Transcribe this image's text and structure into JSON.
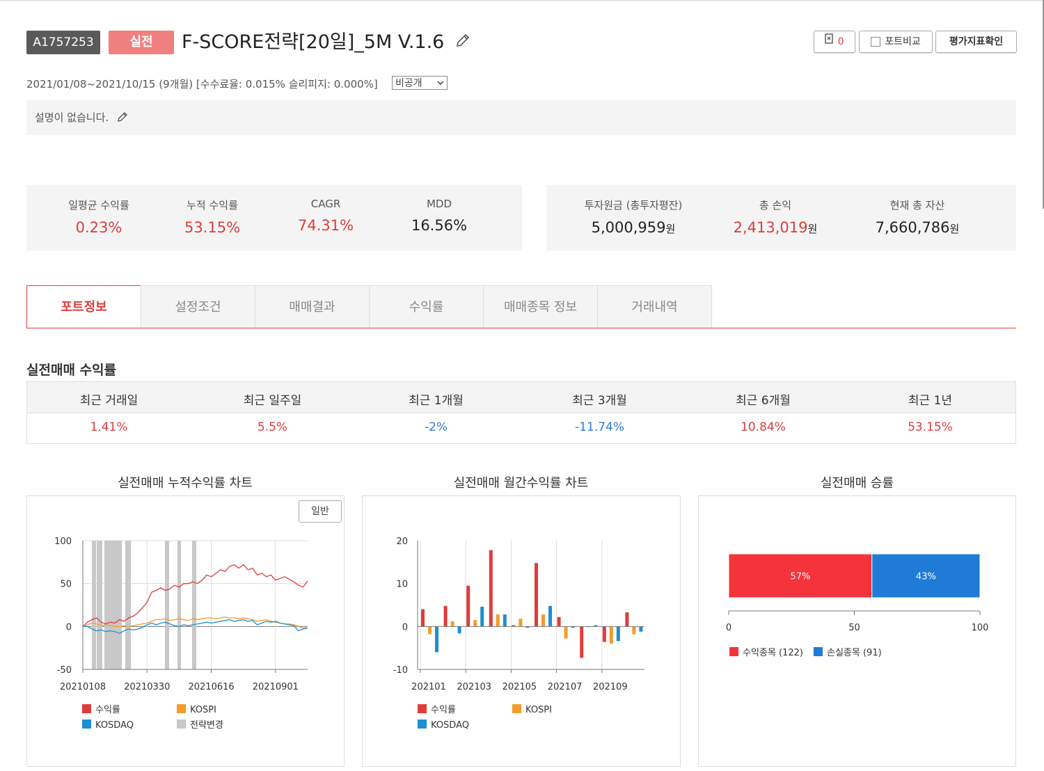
{
  "header": {
    "id": "A1757253",
    "badge": "실전",
    "title": "F-SCORE전략[20일]_5M V.1.6",
    "copy_count": "0",
    "compare_label": "포트비교",
    "eval_label": "평가지표확인",
    "meta": "2021/01/08~2021/10/15 (9개월) [수수료율: 0.015% 슬리피지: 0.000%]",
    "visibility": "비공개",
    "description": "설명이 없습니다."
  },
  "stats_left": [
    {
      "label": "일평균 수익률",
      "value": "0.23%"
    },
    {
      "label": "누적 수익률",
      "value": "53.15%"
    },
    {
      "label": "CAGR",
      "value": "74.31%"
    },
    {
      "label": "MDD",
      "value": "16.56%"
    }
  ],
  "stats_right": [
    {
      "label": "투자원금 (총투자평잔)",
      "value": "5,000,959",
      "unit": "원"
    },
    {
      "label": "총 손익",
      "value": "2,413,019",
      "unit": "원"
    },
    {
      "label": "현재 총 자산",
      "value": "7,660,786",
      "unit": "원"
    }
  ],
  "tabs": [
    "포트정보",
    "설정조건",
    "매매결과",
    "수익률",
    "매매종목 정보",
    "거래내역"
  ],
  "returns_section": {
    "title": "실전매매 수익률",
    "headers": [
      "최근 거래일",
      "최근 일주일",
      "최근 1개월",
      "최근 3개월",
      "최근 6개월",
      "최근 1년"
    ],
    "values": [
      "1.41%",
      "5.5%",
      "-2%",
      "-11.74%",
      "10.84%",
      "53.15%"
    ]
  },
  "colors": {
    "red": "#e03c3c",
    "blue": "#2e7bcf",
    "kospi": "#f39c2b",
    "kosdaq": "#1e8fd0",
    "change": "#c8c8c8",
    "win": "#f5333a",
    "loss": "#1f7bd6"
  },
  "chart_titles": [
    "실전매매 누적수익률 차트",
    "실전매매 월간수익률 차트",
    "실전매매 승률"
  ],
  "cum_chart_button": "일반",
  "chart_data": [
    {
      "type": "line",
      "x_ticks": [
        "20210108",
        "20210330",
        "20210616",
        "20210901"
      ],
      "ylim": [
        -50,
        100
      ],
      "y_ticks": [
        100,
        50,
        0,
        -50
      ],
      "legend": [
        "수익률",
        "KOSPI",
        "KOSDAQ",
        "전략변경"
      ],
      "series": [
        {
          "name": "수익률",
          "values": [
            0,
            5,
            8,
            10,
            5,
            3,
            5,
            4,
            8,
            6,
            10,
            12,
            16,
            22,
            28,
            40,
            42,
            45,
            42,
            44,
            48,
            46,
            50,
            50,
            52,
            50,
            54,
            60,
            58,
            62,
            66,
            64,
            70,
            72,
            68,
            72,
            66,
            68,
            60,
            62,
            58,
            60,
            54,
            56,
            58,
            55,
            52,
            48,
            46,
            53
          ]
        },
        {
          "name": "KOSPI",
          "values": [
            0,
            2,
            4,
            3,
            1,
            2,
            1,
            0,
            0,
            1,
            0,
            1,
            2,
            3,
            4,
            6,
            8,
            8,
            9,
            7,
            8,
            9,
            8,
            7,
            9,
            8,
            9,
            10,
            10,
            9,
            10,
            11,
            10,
            10,
            9,
            10,
            9,
            8,
            6,
            7,
            8,
            6,
            5,
            4,
            3,
            3,
            2,
            0,
            -2,
            0
          ]
        },
        {
          "name": "KOSDAQ",
          "values": [
            0,
            0,
            -3,
            -5,
            -4,
            -6,
            -5,
            -6,
            -8,
            -5,
            -3,
            -4,
            -3,
            -1,
            2,
            4,
            2,
            4,
            5,
            3,
            1,
            0,
            2,
            1,
            2,
            3,
            4,
            5,
            4,
            5,
            6,
            7,
            8,
            6,
            7,
            8,
            6,
            7,
            2,
            4,
            6,
            5,
            6,
            4,
            3,
            2,
            1,
            -5,
            -3,
            -2
          ]
        }
      ]
    },
    {
      "type": "bar",
      "x_ticks": [
        "202101",
        "202103",
        "202105",
        "202107",
        "202109"
      ],
      "ylim": [
        -10,
        20
      ],
      "y_ticks": [
        20,
        10,
        0,
        -10
      ],
      "legend": [
        "수익률",
        "KOSPI",
        "KOSDAQ"
      ],
      "categories": [
        "202101",
        "202102",
        "202103",
        "202104",
        "202105",
        "202106",
        "202107",
        "202108",
        "202109",
        "202110"
      ],
      "series": [
        {
          "name": "수익률",
          "values": [
            4,
            4.8,
            9.5,
            17.8,
            0.3,
            14.8,
            2.2,
            -7.3,
            -3.6,
            3.3
          ]
        },
        {
          "name": "KOSPI",
          "values": [
            -1.8,
            1.2,
            1.5,
            2.8,
            1.8,
            2.8,
            -2.8,
            0,
            -4,
            -1.8
          ]
        },
        {
          "name": "KOSDAQ",
          "values": [
            -6,
            -1.6,
            4.6,
            2.8,
            -0.3,
            4.8,
            -0.3,
            0.3,
            -3.4,
            -1.2
          ]
        }
      ]
    },
    {
      "type": "bar",
      "orientation": "horizontal-stacked",
      "x_ticks": [
        "0",
        "50",
        "100"
      ],
      "xlim": [
        0,
        100
      ],
      "values": [
        57,
        43
      ],
      "labels": [
        "57%",
        "43%"
      ],
      "legend": [
        "수익종목 (122)",
        "손실종목 (91)"
      ]
    }
  ]
}
